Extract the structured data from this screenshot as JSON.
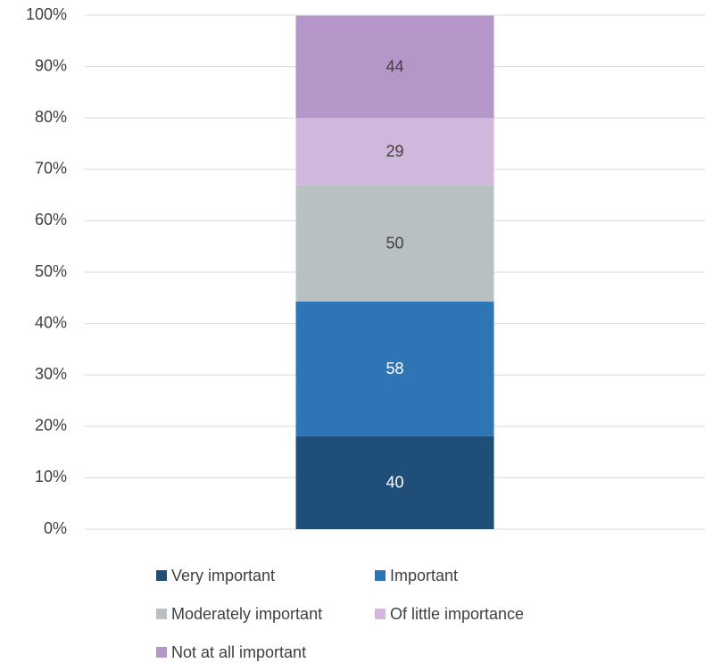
{
  "chart_data": {
    "type": "stacked_bar",
    "categories": [
      null
    ],
    "series": [
      {
        "name": "Very important",
        "color": "#1f4e79",
        "values": [
          18.1
        ],
        "counts": [
          40
        ]
      },
      {
        "name": "Important",
        "color": "#2e75b6",
        "values": [
          26.2
        ],
        "counts": [
          58
        ]
      },
      {
        "name": "Moderately important",
        "color": "#b8c0c2",
        "values": [
          22.6
        ],
        "counts": [
          50
        ]
      },
      {
        "name": "Of little importance",
        "color": "#d0b8dc",
        "values": [
          13.1
        ],
        "counts": [
          29
        ]
      },
      {
        "name": "Not at all important",
        "color": "#b596c8",
        "values": [
          19.9
        ],
        "counts": [
          44
        ]
      }
    ],
    "ylim": [
      0,
      100
    ],
    "yticks": [
      {
        "value": 0,
        "label": "0%"
      },
      {
        "value": 10,
        "label": "10%"
      },
      {
        "value": 20,
        "label": "20%"
      },
      {
        "value": 30,
        "label": "30%"
      },
      {
        "value": 40,
        "label": "40%"
      },
      {
        "value": 50,
        "label": "50%"
      },
      {
        "value": 60,
        "label": "60%"
      },
      {
        "value": 70,
        "label": "70%"
      },
      {
        "value": 80,
        "label": "80%"
      },
      {
        "value": 90,
        "label": "90%"
      },
      {
        "value": 100,
        "label": "100%"
      }
    ],
    "grid": true,
    "legend": "bottom"
  }
}
